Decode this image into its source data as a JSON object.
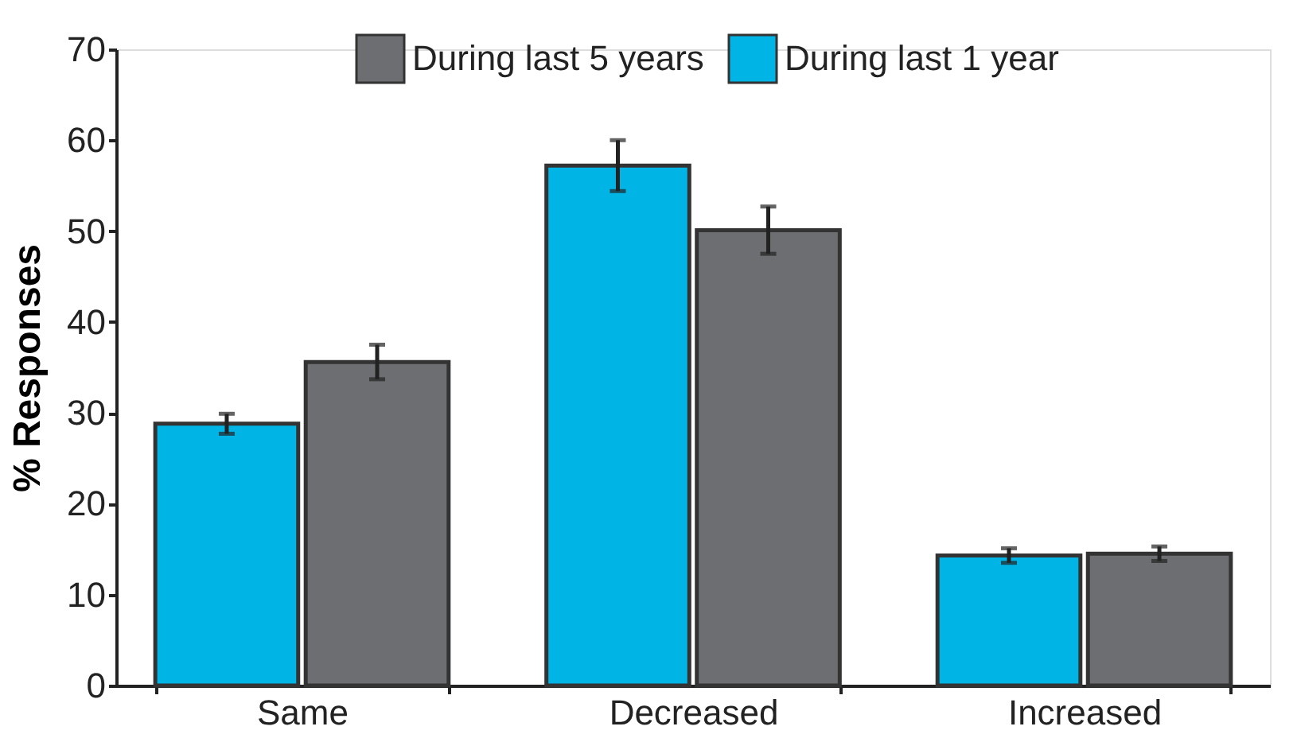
{
  "chart_data": {
    "type": "bar",
    "ylabel": "% Responses",
    "categories": [
      "Same",
      "Decreased",
      "Increased"
    ],
    "series": [
      {
        "name": "During last 1 year",
        "color": "#00b4e6",
        "values": [
          28.8,
          57.2,
          14.3
        ],
        "errors": [
          1.1,
          2.8,
          0.8
        ]
      },
      {
        "name": "During last 5 years",
        "color": "#6d6e71",
        "values": [
          35.6,
          50.1,
          14.5
        ],
        "errors": [
          1.9,
          2.6,
          0.8
        ]
      }
    ],
    "ylim": [
      0,
      70
    ],
    "yticks": [
      0,
      10,
      20,
      30,
      40,
      50,
      60,
      70
    ],
    "grid": false,
    "legend": "top"
  }
}
